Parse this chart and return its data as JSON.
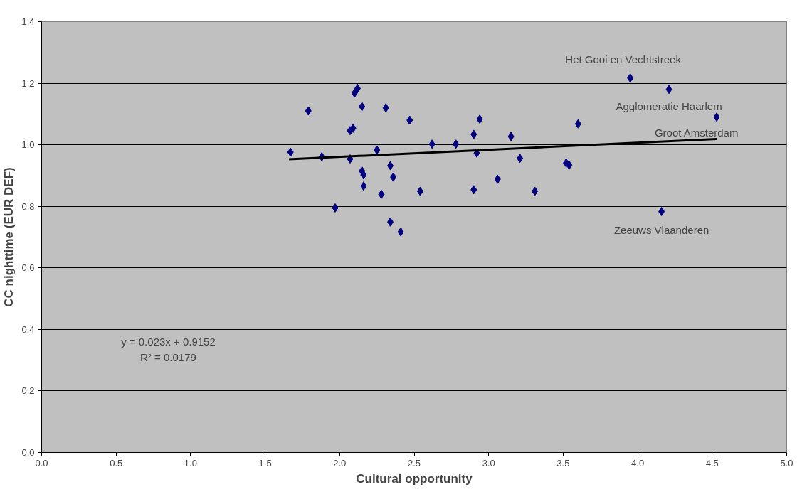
{
  "chart_data": {
    "type": "scatter",
    "xlabel": "Cultural opportunity",
    "ylabel": "CC nighttime (EUR DEF)",
    "xlim": [
      0,
      5
    ],
    "ylim": [
      0,
      1.4
    ],
    "xticks": [
      {
        "value": 0,
        "label": "0.0"
      },
      {
        "value": 0.5,
        "label": "0.5"
      },
      {
        "value": 1,
        "label": "1.0"
      },
      {
        "value": 1.5,
        "label": "1.5"
      },
      {
        "value": 2,
        "label": "2.0"
      },
      {
        "value": 2.5,
        "label": "2.5"
      },
      {
        "value": 3,
        "label": "3.0"
      },
      {
        "value": 3.5,
        "label": "3.5"
      },
      {
        "value": 4,
        "label": "4.0"
      },
      {
        "value": 4.5,
        "label": "4.5"
      },
      {
        "value": 5,
        "label": "5.0"
      }
    ],
    "yticks": [
      {
        "value": 0,
        "label": "0.0"
      },
      {
        "value": 0.2,
        "label": "0.2"
      },
      {
        "value": 0.4,
        "label": "0.4"
      },
      {
        "value": 0.6,
        "label": "0.6"
      },
      {
        "value": 0.8,
        "label": "0.8"
      },
      {
        "value": 1,
        "label": "1.0"
      },
      {
        "value": 1.2,
        "label": "1.2"
      },
      {
        "value": 1.4,
        "label": "1.4"
      }
    ],
    "grid": "y",
    "series": [
      {
        "marker": "diamond",
        "color": "#000080",
        "x": [
          1.67,
          1.79,
          1.88,
          1.97,
          2.07,
          2.07,
          2.09,
          2.1,
          2.12,
          2.15,
          2.15,
          2.16,
          2.16,
          2.25,
          2.31,
          2.28,
          2.34,
          2.36,
          2.34,
          2.41,
          2.47,
          2.54,
          2.62,
          2.78,
          2.9,
          2.92,
          2.9,
          2.94,
          3.06,
          3.15,
          3.21,
          3.31,
          3.52,
          3.54,
          3.6,
          3.95,
          4.21,
          4.16,
          4.53
        ],
        "values": [
          0.976,
          1.11,
          0.961,
          0.795,
          0.954,
          1.046,
          1.054,
          1.168,
          1.183,
          1.124,
          0.915,
          0.902,
          0.866,
          0.983,
          1.12,
          0.839,
          0.932,
          0.895,
          0.749,
          0.717,
          1.08,
          0.849,
          1.002,
          1.002,
          1.034,
          0.973,
          0.854,
          1.083,
          0.888,
          1.027,
          0.956,
          0.849,
          0.941,
          0.934,
          1.068,
          1.217,
          1.18,
          0.783,
          1.09
        ]
      },
      {
        "type": "line",
        "color": "#000000",
        "x": [
          1.66,
          4.53
        ],
        "values": [
          0.953,
          1.019
        ]
      }
    ],
    "annotations": [
      {
        "text": "Het Gooi en Vechtstreek",
        "x": 3.95,
        "y": 1.217
      },
      {
        "text": "Agglomeratie Haarlem",
        "x": 4.21,
        "y": 1.18
      },
      {
        "text": "Groot Amsterdam",
        "x": 4.53,
        "y": 1.09
      },
      {
        "text": "Zeeuws Vlaanderen",
        "x": 4.16,
        "y": 0.783
      },
      "y = 0.023x + 0.9152",
      "R² = 0.0179"
    ]
  }
}
